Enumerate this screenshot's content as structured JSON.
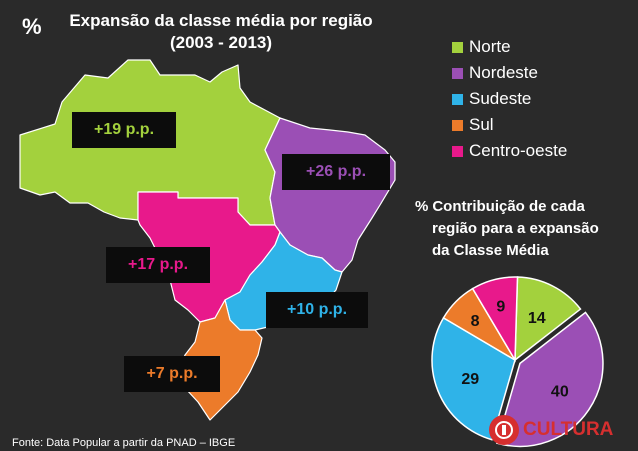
{
  "header": {
    "percent_symbol": "%",
    "title_line1": "Expansão da classe média por região",
    "title_line2": "(2003 - 2013)"
  },
  "colors": {
    "Norte": "#a3d13d",
    "Nordeste": "#9b4fb5",
    "Sudeste": "#2fb3e8",
    "Sul": "#ec7b2a",
    "Centro-oeste": "#e8198b",
    "background": "#2a2a2a",
    "label_bg": "#0c0c0c"
  },
  "legend": [
    {
      "label": "Norte",
      "color": "#a3d13d"
    },
    {
      "label": "Nordeste",
      "color": "#9b4fb5"
    },
    {
      "label": "Sudeste",
      "color": "#2fb3e8"
    },
    {
      "label": "Sul",
      "color": "#ec7b2a"
    },
    {
      "label": "Centro-oeste",
      "color": "#e8198b"
    }
  ],
  "map_labels": {
    "norte": "+19 p.p.",
    "nordeste": "+26 p.p.",
    "centro_oeste": "+17 p.p.",
    "sudeste": "+10 p.p.",
    "sul": "+7 p.p."
  },
  "pie": {
    "percent_symbol": "%",
    "title_line1": "Contribuição de cada",
    "title_line2": "região para a expansão",
    "title_line3": "da Classe Média"
  },
  "chart_data": {
    "type": "pie",
    "categories": [
      "Norte",
      "Nordeste",
      "Sudeste",
      "Sul",
      "Centro-oeste"
    ],
    "values": [
      14,
      40,
      29,
      8,
      9
    ],
    "colors": [
      "#a3d13d",
      "#9b4fb5",
      "#2fb3e8",
      "#ec7b2a",
      "#e8198b"
    ],
    "title": "Contribuição de cada região para a expansão da Classe Média",
    "exploded": "Nordeste"
  },
  "footer": {
    "source": "Fonte: Data Popular a partir da PNAD – IBGE"
  },
  "logo": {
    "text": "CULTURA"
  }
}
